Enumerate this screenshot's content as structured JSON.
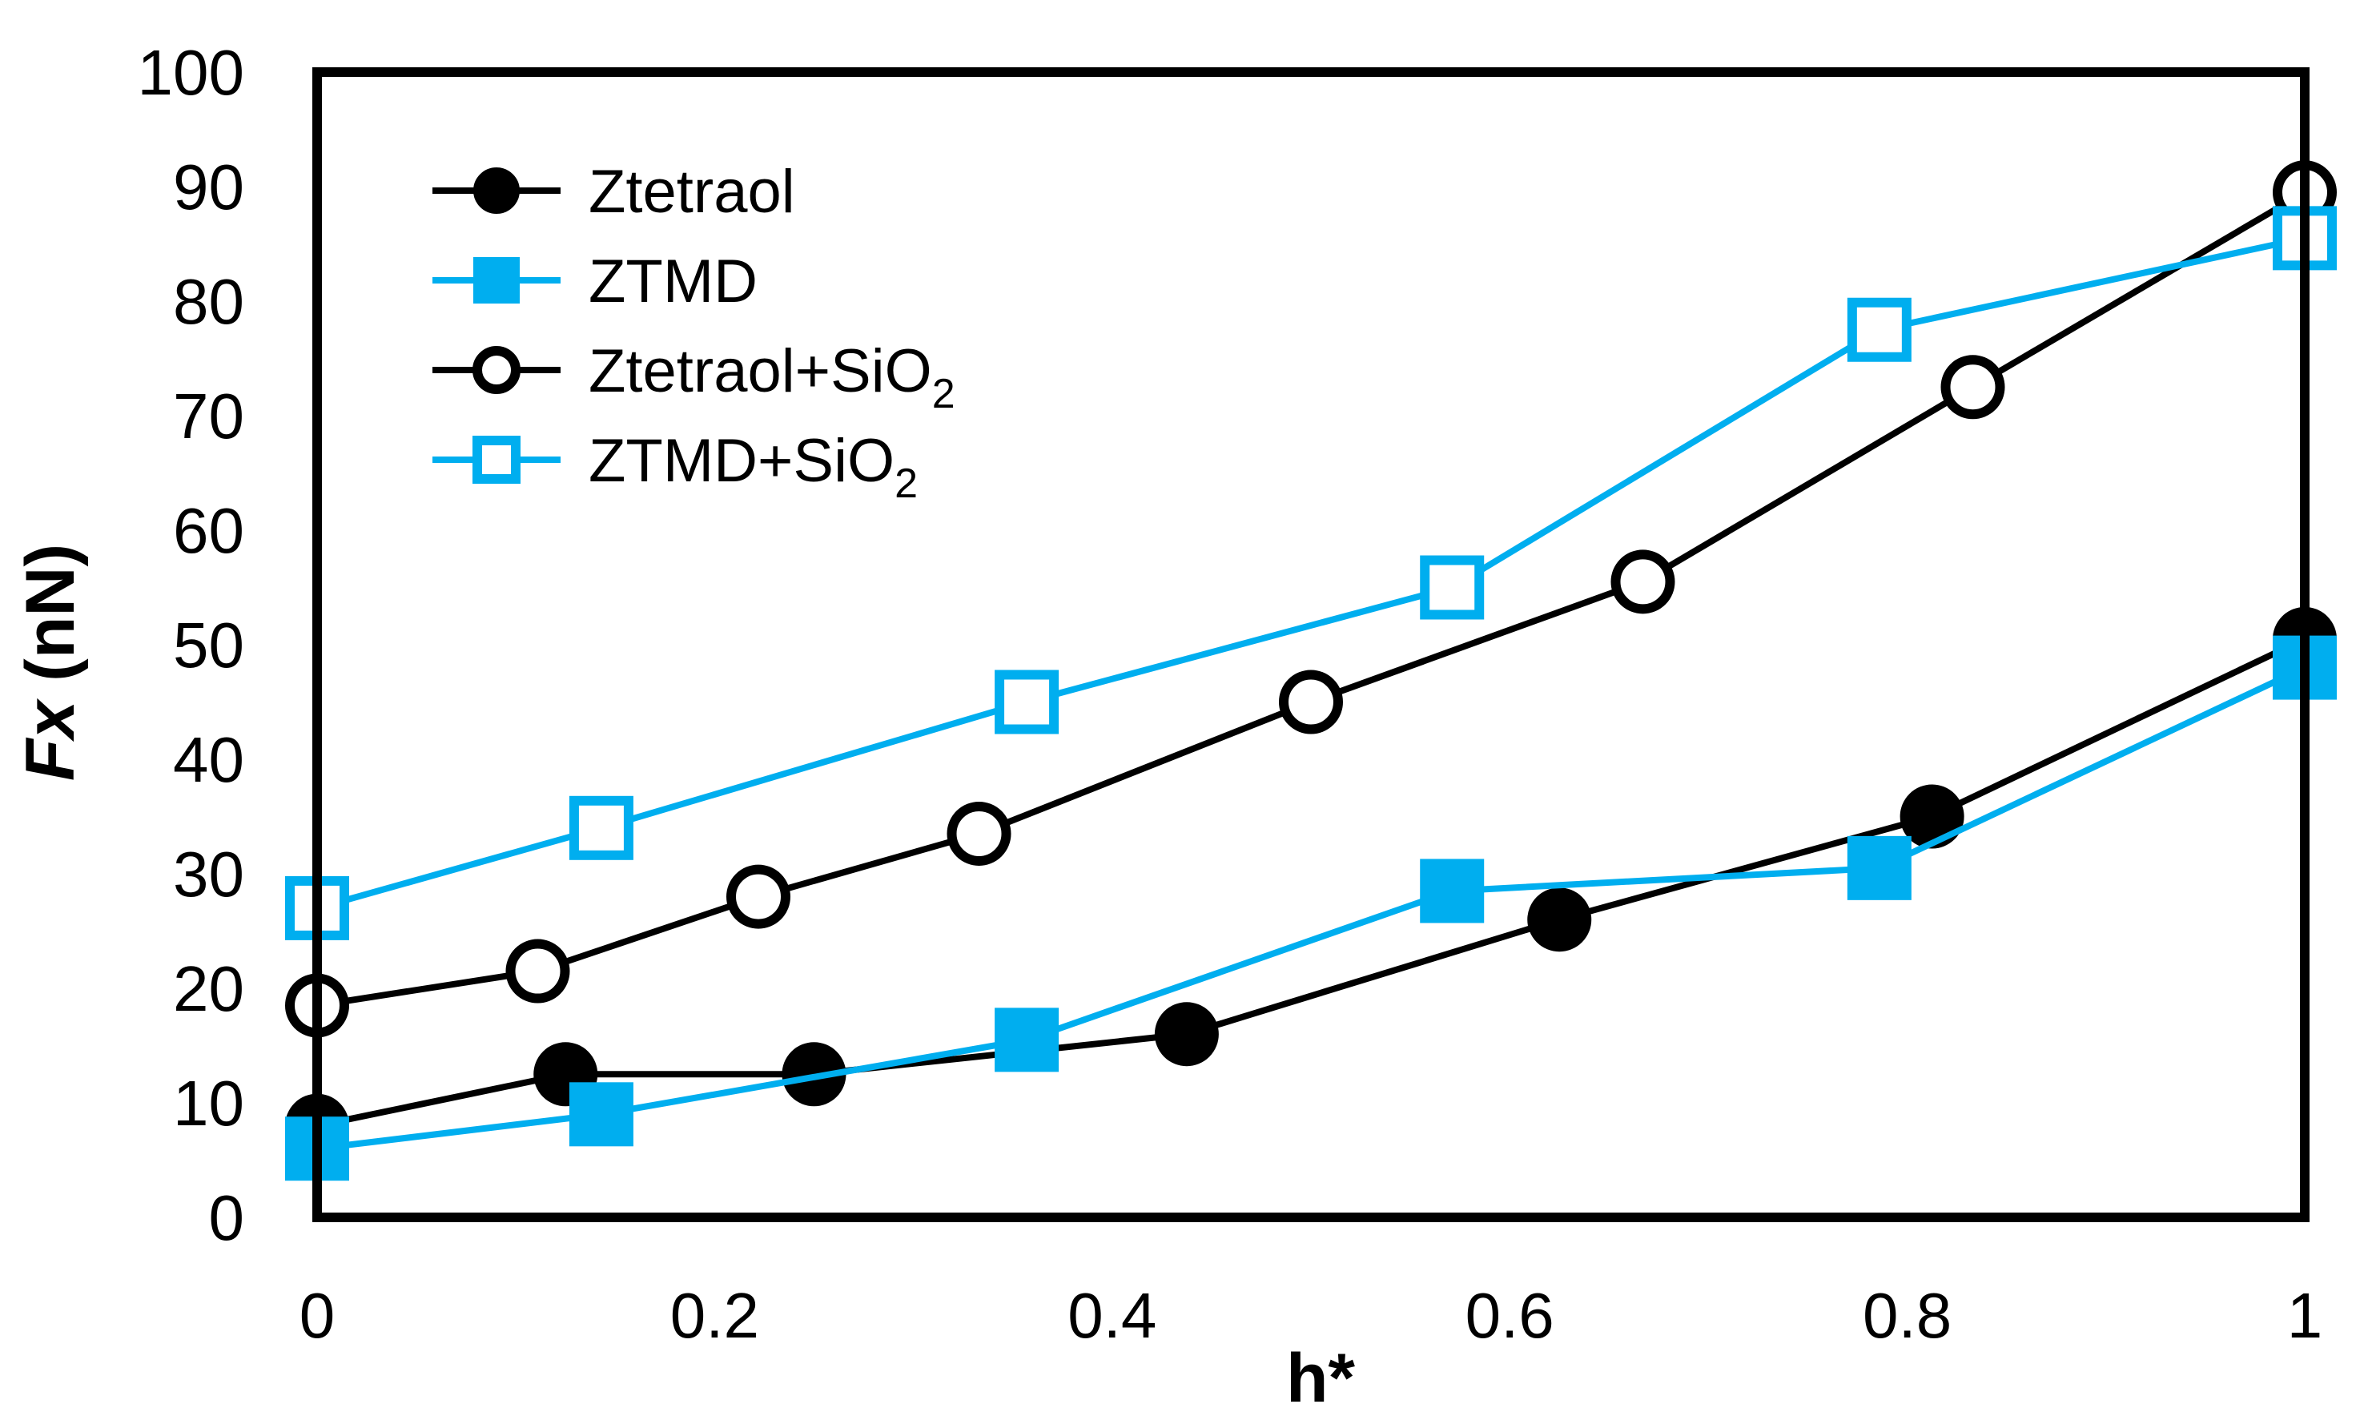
{
  "chart_data": {
    "type": "line",
    "title": "",
    "xlabel": "h*",
    "ylabel_italic": "Fx",
    "ylabel_rest": " (nN)",
    "xlim": [
      0,
      1
    ],
    "ylim": [
      0,
      100
    ],
    "xticks": [
      0,
      0.2,
      0.4,
      0.6,
      0.8,
      1
    ],
    "xtick_labels": [
      "0",
      "0.2",
      "0.4",
      "0.6",
      "0.8",
      "1"
    ],
    "yticks": [
      0,
      10,
      20,
      30,
      40,
      50,
      60,
      70,
      80,
      90,
      100
    ],
    "ytick_labels": [
      "0",
      "10",
      "20",
      "30",
      "40",
      "50",
      "60",
      "70",
      "80",
      "90",
      "100"
    ],
    "legend_position": "top-left",
    "series": [
      {
        "name": "Ztetraol",
        "label_main": "Ztetraol",
        "label_sub": "",
        "color": "#000000",
        "marker": "circle",
        "filled": true,
        "x": [
          0,
          0.125,
          0.25,
          0.4375,
          0.625,
          0.8125,
          1
        ],
        "y": [
          8,
          12.5,
          12.5,
          16,
          26,
          35,
          50.5
        ]
      },
      {
        "name": "ZTMD",
        "label_main": "ZTMD",
        "label_sub": "",
        "color": "#00aeef",
        "marker": "square",
        "filled": true,
        "x": [
          0,
          0.143,
          0.357,
          0.571,
          0.786,
          1
        ],
        "y": [
          6,
          9,
          15.5,
          28.5,
          30.5,
          48
        ]
      },
      {
        "name": "Ztetraol+SiO2",
        "label_main": "Ztetraol+SiO",
        "label_sub": "2",
        "color": "#000000",
        "marker": "circle",
        "filled": false,
        "x": [
          0,
          0.111,
          0.222,
          0.333,
          0.5,
          0.667,
          0.833,
          1
        ],
        "y": [
          18.5,
          21.5,
          28,
          33.5,
          45,
          55.5,
          72.5,
          89.5
        ]
      },
      {
        "name": "ZTMD+SiO2",
        "label_main": "ZTMD+SiO",
        "label_sub": "2",
        "color": "#00aeef",
        "marker": "square",
        "filled": false,
        "x": [
          0,
          0.143,
          0.357,
          0.571,
          0.786,
          1
        ],
        "y": [
          27,
          34,
          45,
          55,
          77.5,
          85.5
        ]
      }
    ]
  }
}
